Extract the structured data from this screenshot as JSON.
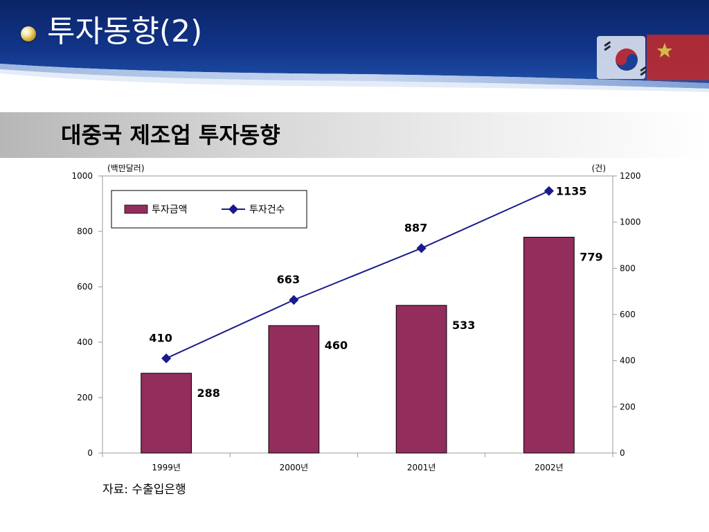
{
  "slide": {
    "title": "투자동향(2)",
    "section_title": "대중국 제조업 투자동향",
    "source": "자료: 수출입은행"
  },
  "colors": {
    "header_dark": "#0b2a6f",
    "header_mid": "#1e4a9e",
    "bar": "#922d5c",
    "line": "#1a1a8c"
  },
  "icons": {
    "bullet": "gold-bullet-icon",
    "flags": "korea-china-flags-icon"
  },
  "chart_data": {
    "type": "bar",
    "categories": [
      "1999년",
      "2000년",
      "2001년",
      "2002년"
    ],
    "series": [
      {
        "name": "투자금액",
        "type": "bar",
        "axis": "left",
        "values": [
          288,
          460,
          533,
          779
        ],
        "labels": [
          "288",
          "460",
          "533",
          "779"
        ]
      },
      {
        "name": "투자건수",
        "type": "line",
        "axis": "right",
        "values": [
          410,
          663,
          887,
          1135
        ],
        "labels": [
          "410",
          "663",
          "887",
          "1135"
        ]
      }
    ],
    "y_left": {
      "unit": "(백만달러)",
      "lim": [
        0,
        1000
      ],
      "ticks": [
        "0",
        "200",
        "400",
        "600",
        "800",
        "1000"
      ]
    },
    "y_right": {
      "unit": "(건)",
      "lim": [
        0,
        1200
      ],
      "ticks": [
        "0",
        "200",
        "400",
        "600",
        "800",
        "1000",
        "1200"
      ]
    },
    "legend_position": "top-left",
    "grid": false
  }
}
